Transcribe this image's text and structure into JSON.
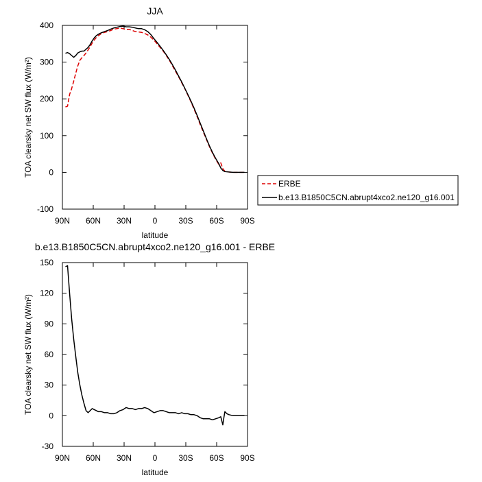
{
  "chart_data": [
    {
      "type": "line",
      "title": "JJA",
      "xlabel": "latitude",
      "ylabel": "TOA clearsky net SW flux (W/m²)",
      "xlim": [
        90,
        -90
      ],
      "ylim": [
        -100,
        400
      ],
      "xticks": [
        90,
        60,
        30,
        0,
        -30,
        -60,
        -90
      ],
      "xtick_labels": [
        "90N",
        "60N",
        "30N",
        "0",
        "30S",
        "60S",
        "90S"
      ],
      "yticks": [
        -100,
        0,
        100,
        200,
        300,
        400
      ],
      "ytick_labels": [
        "-100",
        "0",
        "100",
        "200",
        "300",
        "400"
      ],
      "grid": false,
      "legend_position": "right",
      "series": [
        {
          "name": "ERBE",
          "color": "#dd0000",
          "dash": true,
          "points": [
            [
              87,
              178
            ],
            [
              85,
              180
            ],
            [
              83,
              212
            ],
            [
              81,
              228
            ],
            [
              79,
              248
            ],
            [
              77,
              270
            ],
            [
              75,
              290
            ],
            [
              73,
              305
            ],
            [
              71,
              312
            ],
            [
              69,
              318
            ],
            [
              67,
              325
            ],
            [
              65,
              333
            ],
            [
              63,
              342
            ],
            [
              61,
              352
            ],
            [
              59,
              360
            ],
            [
              57,
              367
            ],
            [
              55,
              372
            ],
            [
              52,
              378
            ],
            [
              49,
              381
            ],
            [
              46,
              383
            ],
            [
              43,
              386
            ],
            [
              40,
              390
            ],
            [
              37,
              391
            ],
            [
              34,
              393
            ],
            [
              31,
              391
            ],
            [
              28,
              388
            ],
            [
              25,
              389
            ],
            [
              22,
              386
            ],
            [
              19,
              383
            ],
            [
              16,
              382
            ],
            [
              13,
              381
            ],
            [
              10,
              378
            ],
            [
              7,
              374
            ],
            [
              4,
              368
            ],
            [
              1,
              360
            ],
            [
              -2,
              350
            ],
            [
              -5,
              340
            ],
            [
              -8,
              330
            ],
            [
              -11,
              318
            ],
            [
              -14,
              305
            ],
            [
              -17,
              290
            ],
            [
              -20,
              275
            ],
            [
              -23,
              260
            ],
            [
              -26,
              244
            ],
            [
              -29,
              228
            ],
            [
              -32,
              210
            ],
            [
              -35,
              192
            ],
            [
              -38,
              172
            ],
            [
              -41,
              152
            ],
            [
              -44,
              130
            ],
            [
              -47,
              110
            ],
            [
              -50,
              90
            ],
            [
              -53,
              70
            ],
            [
              -56,
              52
            ],
            [
              -59,
              36
            ],
            [
              -62,
              22
            ],
            [
              -64,
              26
            ],
            [
              -66,
              10
            ],
            [
              -68,
              3
            ],
            [
              -72,
              1
            ],
            [
              -76,
              0
            ],
            [
              -80,
              0
            ],
            [
              -84,
              0
            ],
            [
              -87,
              0
            ]
          ]
        },
        {
          "name": "b.e13.B1850C5CN.abrupt4xco2.ne120_g16.001",
          "color": "#000000",
          "dash": false,
          "points": [
            [
              87,
              324
            ],
            [
              85,
              326
            ],
            [
              83,
              323
            ],
            [
              81,
              318
            ],
            [
              79,
              313
            ],
            [
              77,
              318
            ],
            [
              75,
              325
            ],
            [
              73,
              328
            ],
            [
              71,
              330
            ],
            [
              69,
              330
            ],
            [
              67,
              335
            ],
            [
              65,
              340
            ],
            [
              63,
              348
            ],
            [
              61,
              358
            ],
            [
              59,
              366
            ],
            [
              57,
              372
            ],
            [
              55,
              376
            ],
            [
              52,
              380
            ],
            [
              49,
              383
            ],
            [
              46,
              386
            ],
            [
              43,
              390
            ],
            [
              40,
              393
            ],
            [
              37,
              395
            ],
            [
              34,
              397
            ],
            [
              31,
              398
            ],
            [
              28,
              396
            ],
            [
              25,
              396
            ],
            [
              22,
              395
            ],
            [
              19,
              393
            ],
            [
              16,
              391
            ],
            [
              13,
              391
            ],
            [
              10,
              388
            ],
            [
              7,
              383
            ],
            [
              4,
              375
            ],
            [
              1,
              364
            ],
            [
              -2,
              354
            ],
            [
              -5,
              343
            ],
            [
              -8,
              332
            ],
            [
              -11,
              320
            ],
            [
              -14,
              307
            ],
            [
              -17,
              293
            ],
            [
              -20,
              278
            ],
            [
              -23,
              262
            ],
            [
              -26,
              246
            ],
            [
              -29,
              229
            ],
            [
              -32,
              212
            ],
            [
              -35,
              194
            ],
            [
              -38,
              175
            ],
            [
              -41,
              155
            ],
            [
              -44,
              134
            ],
            [
              -47,
              113
            ],
            [
              -50,
              92
            ],
            [
              -53,
              72
            ],
            [
              -56,
              54
            ],
            [
              -59,
              38
            ],
            [
              -62,
              24
            ],
            [
              -64,
              12
            ],
            [
              -66,
              5
            ],
            [
              -68,
              2
            ],
            [
              -72,
              1
            ],
            [
              -76,
              0
            ],
            [
              -80,
              0
            ],
            [
              -84,
              0
            ],
            [
              -87,
              0
            ]
          ]
        }
      ]
    },
    {
      "type": "line",
      "title": "b.e13.B1850C5CN.abrupt4xco2.ne120_g16.001 - ERBE",
      "xlabel": "latitude",
      "ylabel": "TOA clearsky net SW flux (W/m²)",
      "xlim": [
        90,
        -90
      ],
      "ylim": [
        -30,
        150
      ],
      "xticks": [
        90,
        60,
        30,
        0,
        -30,
        -60,
        -90
      ],
      "xtick_labels": [
        "90N",
        "60N",
        "30N",
        "0",
        "30S",
        "60S",
        "90S"
      ],
      "yticks": [
        -30,
        0,
        30,
        60,
        90,
        120,
        150
      ],
      "ytick_labels": [
        "-30",
        "0",
        "30",
        "60",
        "90",
        "120",
        "150"
      ],
      "grid": false,
      "series": [
        {
          "color": "#000000",
          "dash": false,
          "points": [
            [
              87,
              146
            ],
            [
              85,
              147
            ],
            [
              83,
              120
            ],
            [
              81,
              95
            ],
            [
              79,
              75
            ],
            [
              77,
              58
            ],
            [
              75,
              42
            ],
            [
              73,
              30
            ],
            [
              71,
              20
            ],
            [
              69,
              12
            ],
            [
              67,
              5
            ],
            [
              65,
              3
            ],
            [
              63,
              5
            ],
            [
              61,
              7
            ],
            [
              59,
              6
            ],
            [
              57,
              5
            ],
            [
              55,
              4
            ],
            [
              52,
              4
            ],
            [
              49,
              3
            ],
            [
              46,
              3
            ],
            [
              43,
              2
            ],
            [
              40,
              2
            ],
            [
              37,
              3
            ],
            [
              34,
              5
            ],
            [
              31,
              6
            ],
            [
              28,
              8
            ],
            [
              25,
              7
            ],
            [
              22,
              7
            ],
            [
              19,
              6
            ],
            [
              16,
              7
            ],
            [
              13,
              7
            ],
            [
              10,
              8
            ],
            [
              7,
              7
            ],
            [
              4,
              5
            ],
            [
              1,
              3
            ],
            [
              -2,
              4
            ],
            [
              -5,
              5
            ],
            [
              -8,
              5
            ],
            [
              -11,
              4
            ],
            [
              -14,
              3
            ],
            [
              -17,
              3
            ],
            [
              -20,
              3
            ],
            [
              -23,
              2
            ],
            [
              -26,
              3
            ],
            [
              -29,
              2
            ],
            [
              -32,
              2
            ],
            [
              -35,
              1
            ],
            [
              -38,
              1
            ],
            [
              -41,
              0
            ],
            [
              -44,
              -2
            ],
            [
              -47,
              -3
            ],
            [
              -50,
              -3
            ],
            [
              -53,
              -3
            ],
            [
              -56,
              -4
            ],
            [
              -59,
              -3
            ],
            [
              -62,
              -2
            ],
            [
              -64,
              -1
            ],
            [
              -65,
              -5
            ],
            [
              -66,
              -9
            ],
            [
              -67,
              -2
            ],
            [
              -68,
              4
            ],
            [
              -70,
              2
            ],
            [
              -72,
              1
            ],
            [
              -76,
              0
            ],
            [
              -80,
              0
            ],
            [
              -84,
              0
            ],
            [
              -87,
              0
            ]
          ]
        }
      ]
    }
  ]
}
